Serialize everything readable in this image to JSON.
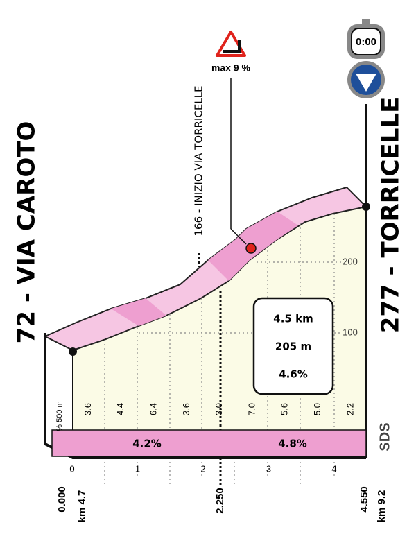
{
  "start": {
    "label": "72 - VIA CAROTO",
    "distance": "0.000",
    "km_to_go": "km 4.7"
  },
  "finish": {
    "label": "277 - TORRICELLE",
    "distance": "4.550",
    "km_to_go": "km 9.2",
    "timer": "0:00"
  },
  "intermediate": {
    "label": "166 - INIZIO VIA TORRICELLE",
    "distance": "2.250"
  },
  "max_gradient": "max 9 %",
  "summary": [
    "4.5 km",
    "205 m",
    "4.6%"
  ],
  "altitude_ticks": [
    "200",
    "100"
  ],
  "gradient_unit": "% 500 m",
  "gradients": [
    "3.6",
    "4.4",
    "6.4",
    "3.6",
    "3.0",
    "7.0",
    "5.6",
    "5.0",
    "2.2"
  ],
  "section_gradients": [
    "4.2%",
    "4.8%"
  ],
  "km_ticks": [
    "0",
    "1",
    "2",
    "3",
    "4"
  ],
  "logo": "SDS"
}
